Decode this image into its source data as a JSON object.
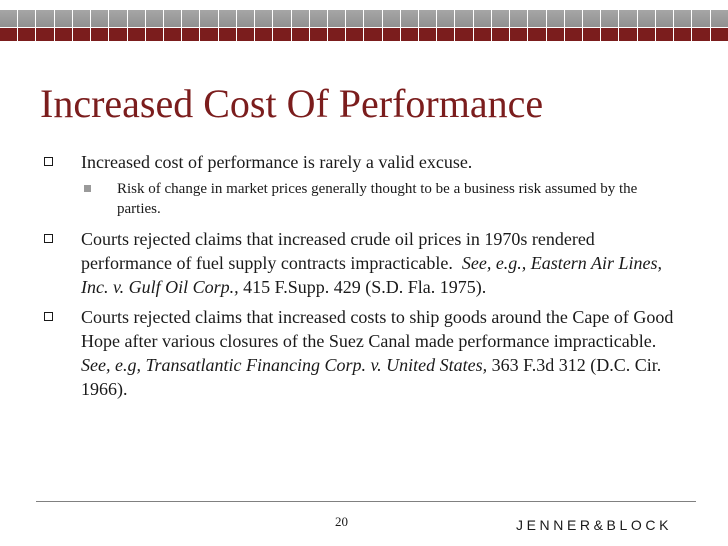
{
  "slide": {
    "title": "Increased Cost Of Performance",
    "page_number": "20",
    "logo_text": "JENNER&BLOCK"
  },
  "bullets": [
    {
      "text": "Increased cost of performance is rarely a valid excuse.",
      "sub": "Risk of change in market prices generally thought to be a business risk assumed by the parties."
    },
    {
      "text": "Courts rejected claims that increased crude oil prices in 1970s rendered performance of  fuel supply contracts impracticable.",
      "citation_italic": "See, e.g., Eastern Air Lines, Inc. v. Gulf Oil Corp.,",
      "citation_rest": "415 F.Supp. 429 (S.D. Fla. 1975)."
    },
    {
      "text": "Courts rejected claims that increased costs to ship goods around the Cape of Good Hope after various closures of the Suez Canal made performance impracticable.",
      "citation_italic": "See, e.g, Transatlantic Financing Corp. v. United States,",
      "citation_rest": "363 F.3d 312 (D.C. Cir. 1966)."
    }
  ],
  "colors": {
    "title": "#7b1d1d",
    "band_gray": "#999999",
    "band_red": "#7b1d1d"
  }
}
